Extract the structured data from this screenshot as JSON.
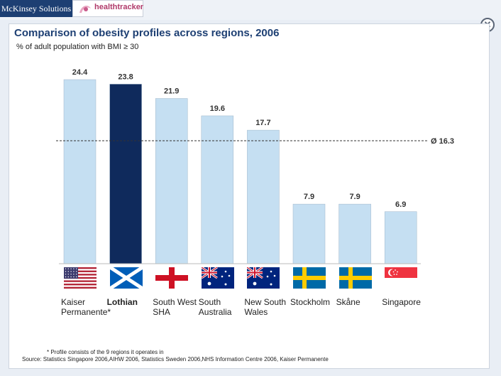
{
  "header": {
    "brand_label": "McKinsey Solutions",
    "product_label": "healthtracker"
  },
  "chart_data": {
    "type": "bar",
    "title": "Comparison of obesity profiles across regions, 2006",
    "subtitle": "% of adult population with BMI ≥ 30",
    "categories": [
      "Kaiser Permanente*",
      "Lothian",
      "South West SHA",
      "South Australia",
      "New South Wales",
      "Stockholm",
      "Skåne",
      "Singapore"
    ],
    "values": [
      24.4,
      23.8,
      21.9,
      19.6,
      17.7,
      7.9,
      7.9,
      6.9
    ],
    "value_labels": [
      "24.4",
      "23.8",
      "21.9",
      "19.6",
      "17.7",
      "7.9",
      "7.9",
      "6.9"
    ],
    "highlight_index": 1,
    "reference_line": {
      "value": 16.3,
      "label": "Ø 16.3"
    },
    "ylim": [
      0,
      24.4
    ],
    "bar_color": "#c5dff2",
    "highlight_color": "#0f2a5c"
  },
  "regions": [
    {
      "label_lines": [
        "Kaiser",
        "Permanente*"
      ],
      "flag": "flag-usa"
    },
    {
      "label_lines": [
        "Lothian"
      ],
      "flag": "flag-scotland"
    },
    {
      "label_lines": [
        "South West",
        "SHA"
      ],
      "flag": "flag-england"
    },
    {
      "label_lines": [
        "South",
        "Australia"
      ],
      "flag": "flag-australia"
    },
    {
      "label_lines": [
        "New South",
        "Wales"
      ],
      "flag": "flag-australia"
    },
    {
      "label_lines": [
        "Stockholm"
      ],
      "flag": "flag-sweden"
    },
    {
      "label_lines": [
        "Skåne"
      ],
      "flag": "flag-sweden"
    },
    {
      "label_lines": [
        "Singapore"
      ],
      "flag": "flag-singapore"
    }
  ],
  "footnote": "* Profile consists of the 9 regions it operates in",
  "source": "Source:  Statistics Singapore 2006,AIHW 2006, Statistics Sweden 2006,NHS Information Centre 2006,  Kaiser Permanente",
  "close_icon": "close-icon"
}
